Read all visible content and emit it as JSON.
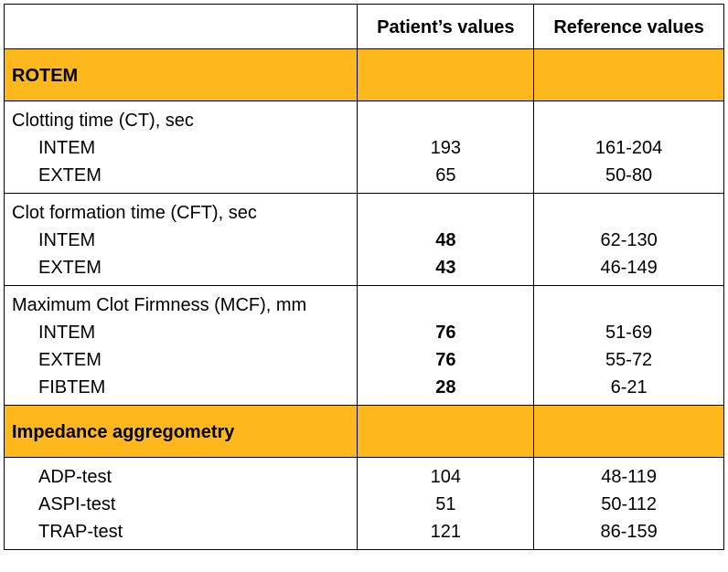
{
  "header": {
    "col1": "",
    "col2": "Patient’s values",
    "col3": "Reference values"
  },
  "sections": [
    {
      "title": "ROTEM",
      "groups": [
        {
          "heading": "Clotting time (CT), sec",
          "rows": [
            {
              "name": "INTEM",
              "value": "193",
              "bold": false,
              "ref": "161-204"
            },
            {
              "name": "EXTEM",
              "value": "65",
              "bold": false,
              "ref": "50-80"
            }
          ]
        },
        {
          "heading": "Clot formation time (CFT), sec",
          "rows": [
            {
              "name": "INTEM",
              "value": "48",
              "bold": true,
              "ref": "62-130"
            },
            {
              "name": "EXTEM",
              "value": "43",
              "bold": true,
              "ref": "46-149"
            }
          ]
        },
        {
          "heading": "Maximum Clot Firmness (MCF), mm",
          "rows": [
            {
              "name": "INTEM",
              "value": "76",
              "bold": true,
              "ref": "51-69"
            },
            {
              "name": "EXTEM",
              "value": "76",
              "bold": true,
              "ref": "55-72"
            },
            {
              "name": "FIBTEM",
              "value": "28",
              "bold": true,
              "ref": "6-21"
            }
          ]
        }
      ]
    },
    {
      "title": "Impedance aggregometry",
      "groups": [
        {
          "heading": "",
          "rows": [
            {
              "name": "ADP-test",
              "value": "104",
              "bold": false,
              "ref": "48-119"
            },
            {
              "name": "ASPI-test",
              "value": "51",
              "bold": false,
              "ref": "50-112"
            },
            {
              "name": "TRAP-test",
              "value": "121",
              "bold": false,
              "ref": "86-159"
            }
          ]
        }
      ]
    }
  ],
  "colors": {
    "section_fill": "#ffb81c",
    "border": "#000000"
  }
}
